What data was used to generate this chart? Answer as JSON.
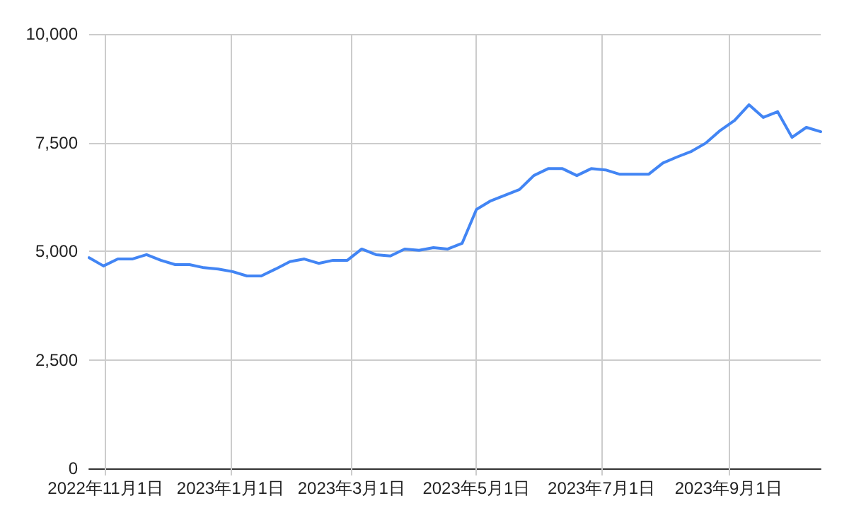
{
  "chart_data": {
    "type": "line",
    "x": [
      "2022-10-24",
      "2022-10-31",
      "2022-11-07",
      "2022-11-14",
      "2022-11-21",
      "2022-11-28",
      "2022-12-05",
      "2022-12-12",
      "2022-12-19",
      "2022-12-26",
      "2023-01-02",
      "2023-01-09",
      "2023-01-16",
      "2023-01-23",
      "2023-01-30",
      "2023-02-06",
      "2023-02-13",
      "2023-02-20",
      "2023-02-27",
      "2023-03-06",
      "2023-03-13",
      "2023-03-20",
      "2023-03-27",
      "2023-04-03",
      "2023-04-10",
      "2023-04-17",
      "2023-04-24",
      "2023-05-01",
      "2023-05-08",
      "2023-05-15",
      "2023-05-22",
      "2023-05-29",
      "2023-06-05",
      "2023-06-12",
      "2023-06-19",
      "2023-06-26",
      "2023-07-03",
      "2023-07-10",
      "2023-07-17",
      "2023-07-24",
      "2023-07-31",
      "2023-08-07",
      "2023-08-14",
      "2023-08-21",
      "2023-08-28",
      "2023-09-04",
      "2023-09-11",
      "2023-09-18",
      "2023-09-25",
      "2023-10-02",
      "2023-10-09",
      "2023-10-16"
    ],
    "series": [
      {
        "color": "#4285f4",
        "values": [
          4850,
          4660,
          4820,
          4820,
          4920,
          4790,
          4690,
          4690,
          4620,
          4590,
          4530,
          4430,
          4430,
          4590,
          4760,
          4820,
          4720,
          4790,
          4790,
          5050,
          4920,
          4890,
          5050,
          5020,
          5080,
          5050,
          5180,
          5960,
          6160,
          6290,
          6420,
          6740,
          6900,
          6900,
          6740,
          6900,
          6870,
          6770,
          6770,
          6770,
          7030,
          7170,
          7300,
          7490,
          7780,
          8010,
          8370,
          8080,
          8210,
          7620,
          7850,
          7750
        ]
      }
    ],
    "xlim": [
      "2022-10-24",
      "2023-10-16"
    ],
    "xticks": [
      {
        "value": "2022-11-01",
        "label": "2022年11月1日"
      },
      {
        "value": "2023-01-01",
        "label": "2023年1月1日"
      },
      {
        "value": "2023-03-01",
        "label": "2023年3月1日"
      },
      {
        "value": "2023-05-01",
        "label": "2023年5月1日"
      },
      {
        "value": "2023-07-01",
        "label": "2023年7月1日"
      },
      {
        "value": "2023-09-01",
        "label": "2023年9月1日"
      }
    ],
    "ylim": [
      0,
      10000
    ],
    "yticks": [
      0,
      {
        "value": 2500,
        "label": "2,500"
      },
      {
        "value": 5000,
        "label": "5,000"
      },
      {
        "value": 7500,
        "label": "7,500"
      },
      {
        "value": 10000,
        "label": "10,000"
      }
    ],
    "grid": true,
    "marker": "none",
    "line_style": "solid"
  }
}
